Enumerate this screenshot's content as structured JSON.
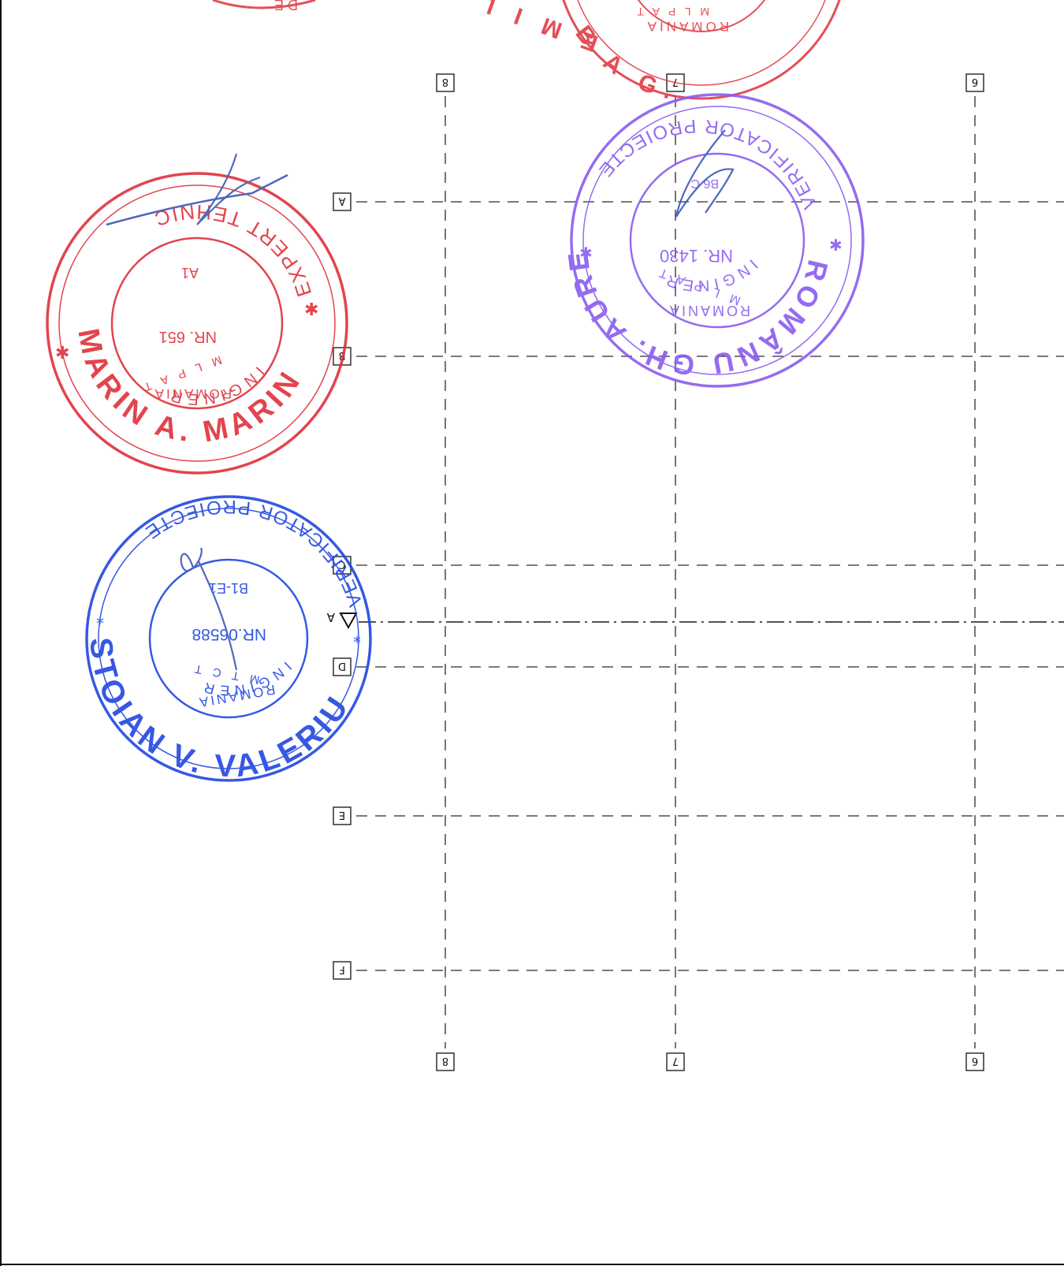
{
  "axes": {
    "columns": [
      "8",
      "7",
      "6"
    ],
    "rows": [
      "A",
      "B",
      "C",
      "D",
      "E",
      "F"
    ]
  },
  "level_mark": "A",
  "stamps": [
    {
      "id": "stamp-red-top",
      "color": "#e0303a",
      "outer": "",
      "inner": "",
      "fragments": [
        "D E",
        "ROMANIA",
        "M L P A T",
        "E M I L",
        "B A G."
      ]
    },
    {
      "id": "stamp-marin",
      "color": "#e0303a",
      "outer": "MARIN A. MARIN",
      "upper": "EXPERT TEHNIC",
      "ring2": "INGINER",
      "inner_top": "A1",
      "inner_mid": "NR. 651",
      "inner_bottom": "M L P A T",
      "inner_label": "ROMANIA"
    },
    {
      "id": "stamp-romanu",
      "color": "#8a5cf0",
      "outer": "ROMÂNU GH. AUREL",
      "upper": "VERIFICATOR PROIECTE",
      "ring2": "INGINER",
      "inner_top": "B6 C",
      "inner_mid": "NR. 1430",
      "inner_bottom": "M L P A T",
      "inner_label": "ROMANIA"
    },
    {
      "id": "stamp-stoian",
      "color": "#2146e0",
      "outer": "STOIAN V. VALERIU",
      "upper": "VERIFICATOR PROIECTE",
      "ring2": "INGINER",
      "inner_top": "B1-E1",
      "inner_mid": "NR.06588",
      "inner_bottom": "M T C T",
      "inner_label": "ROMANIA"
    }
  ]
}
